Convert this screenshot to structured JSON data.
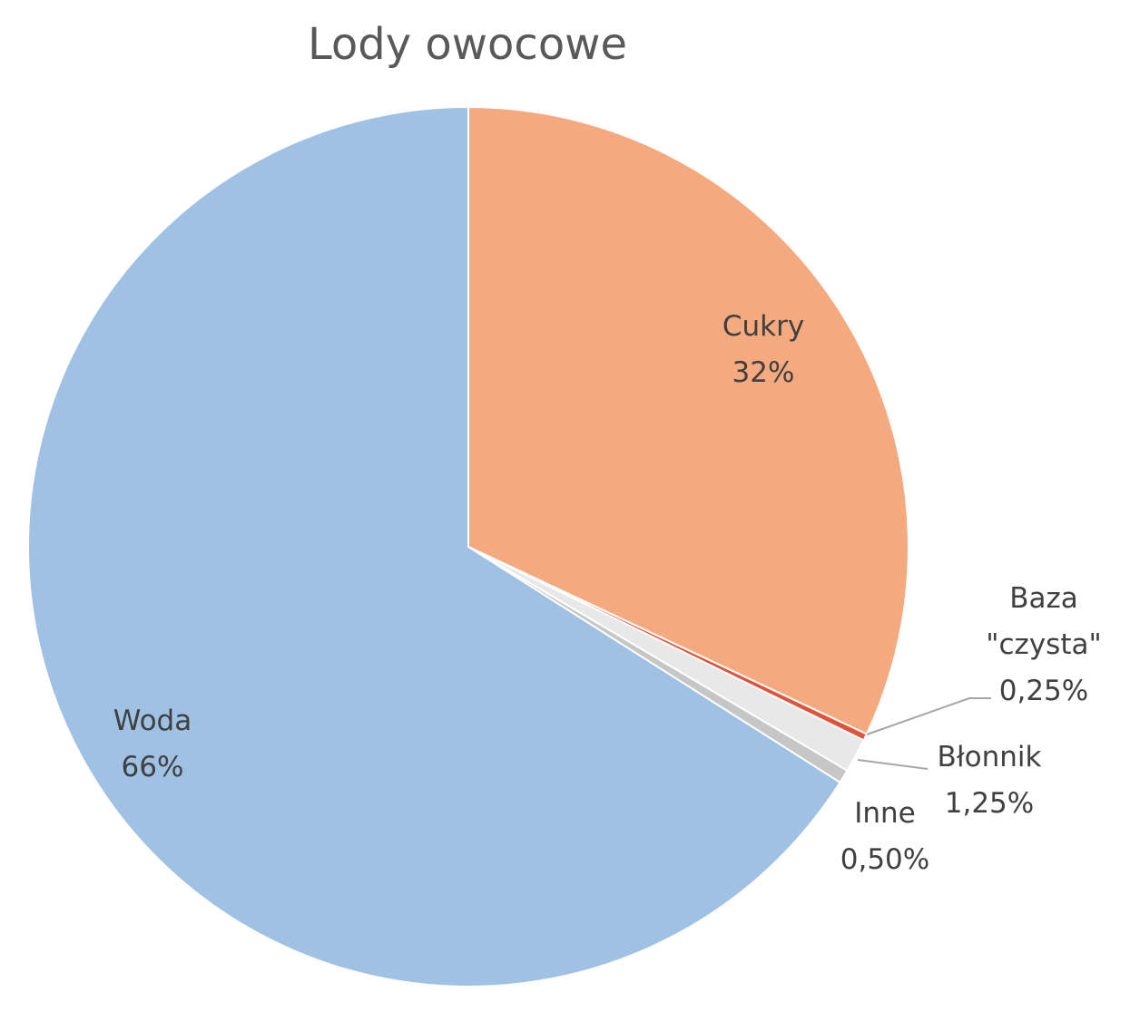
{
  "chart_data": {
    "type": "pie",
    "title": "Lody owocowe",
    "categories": [
      "Cukry",
      "Baza \"czysta\"",
      "Błonnik",
      "Inne",
      "Woda"
    ],
    "values": [
      32,
      0.25,
      1.25,
      0.5,
      66
    ],
    "value_labels": [
      "32%",
      "0,25%",
      "1,25%",
      "0,50%",
      "66%"
    ],
    "colors": [
      "#f4a97f",
      "#e0523a",
      "#e8e8e8",
      "#c6c6c6",
      "#9fc1e4"
    ]
  }
}
